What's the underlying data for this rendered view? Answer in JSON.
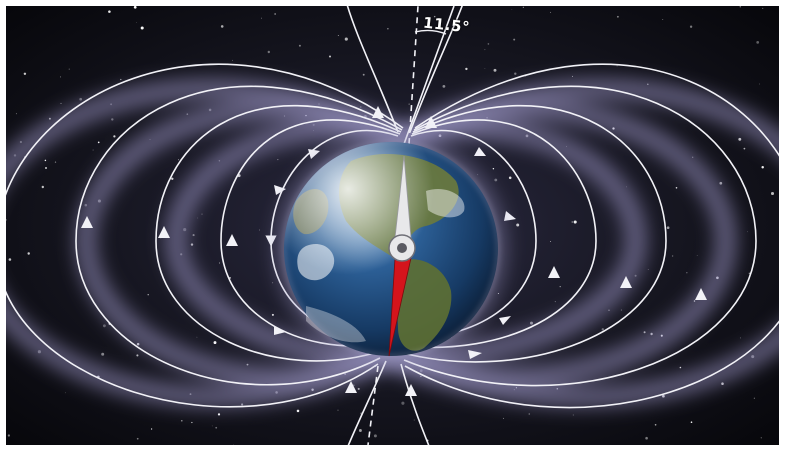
{
  "image": {
    "tilt_annotation": "11.5°",
    "colors": {
      "space": "#0a0b14",
      "field_glow": "#9a96c4",
      "field_line": "#f2f2f7",
      "needle_north": "#e8e8ea",
      "needle_south": "#d4141c",
      "earth_ocean": "#1c4f86",
      "earth_land": "#6b7a3c"
    }
  }
}
